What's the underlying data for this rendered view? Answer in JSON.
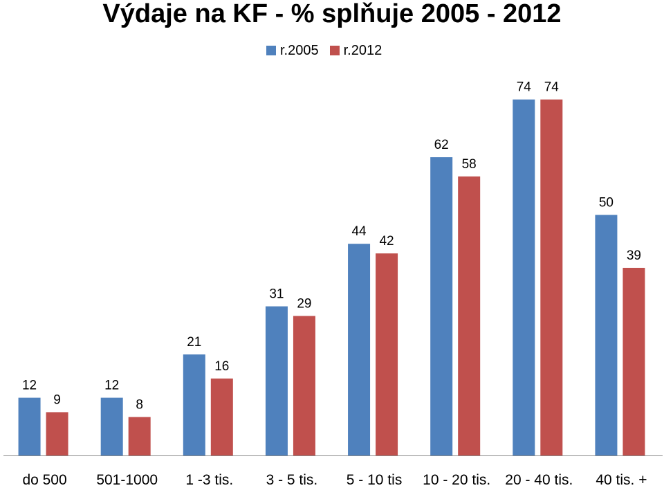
{
  "chart_data": {
    "type": "bar",
    "title": "Výdaje na KF - % splňuje 2005 - 2012",
    "categories": [
      "do 500",
      "501-1000",
      "1 -3 tis.",
      "3 - 5 tis.",
      "5 - 10 tis",
      "10 - 20 tis.",
      "20 - 40 tis.",
      "40 tis. +"
    ],
    "series": [
      {
        "name": "r.2005",
        "color": "#4F81BD",
        "values": [
          12,
          12,
          21,
          31,
          44,
          62,
          74,
          50
        ]
      },
      {
        "name": "r.2012",
        "color": "#C0504D",
        "values": [
          9,
          8,
          16,
          29,
          42,
          58,
          74,
          39
        ]
      }
    ],
    "ylim": [
      0,
      80
    ],
    "xlabel": "",
    "ylabel": "",
    "grid": false,
    "legend_position": "top-center"
  }
}
